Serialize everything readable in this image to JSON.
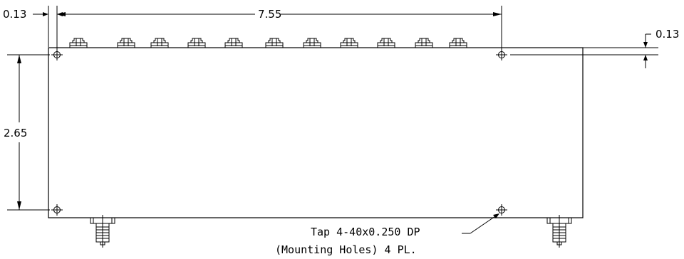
{
  "dimensions": {
    "left_offset": "0.13",
    "overall_width": "7.55",
    "right_offset": "0.13",
    "height": "2.65"
  },
  "note": {
    "line1": "Tap 4-40x0.250 DP",
    "line2": "(Mounting Holes) 4 PL."
  }
}
